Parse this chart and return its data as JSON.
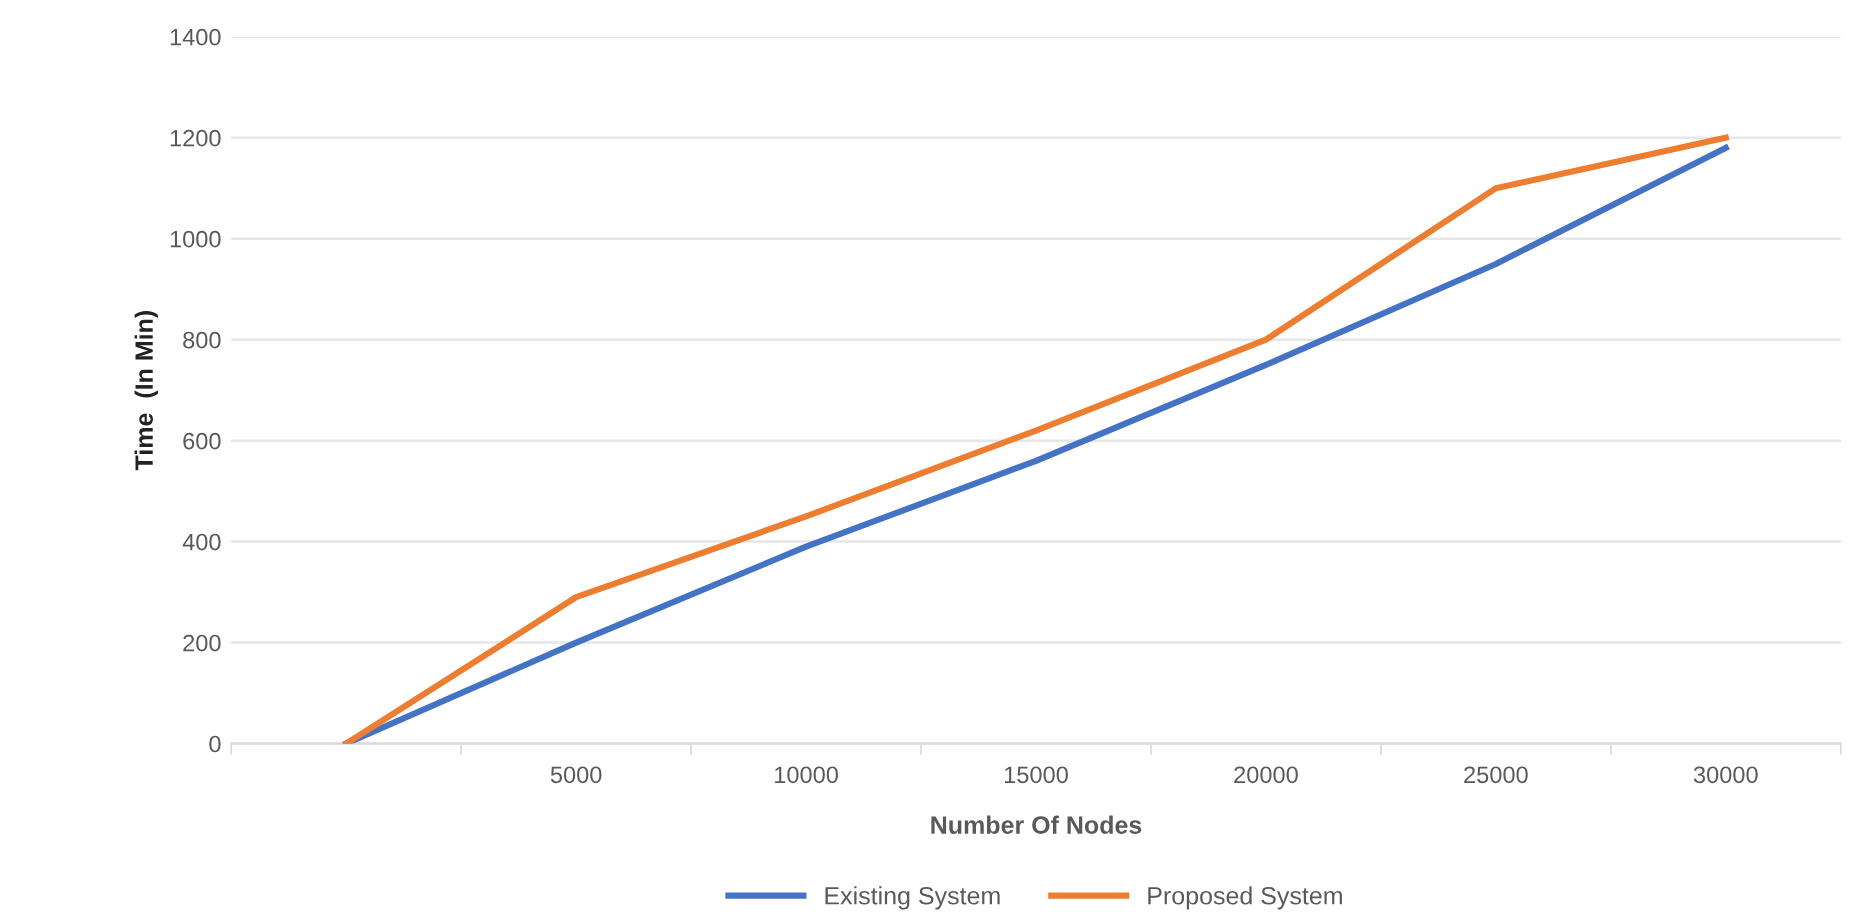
{
  "chart_data": {
    "type": "line",
    "xlabel": "Number Of Nodes",
    "ylabel": "Time  (In Min)",
    "categories": [
      null,
      "5000",
      "10000",
      "15000",
      "20000",
      "25000",
      "30000"
    ],
    "series": [
      {
        "name": "Existing System",
        "color": "#4472c4",
        "values": [
          0,
          200,
          390,
          560,
          750,
          950,
          1180
        ]
      },
      {
        "name": "Proposed System",
        "color": "#ed7d31",
        "values": [
          0,
          290,
          450,
          620,
          800,
          1100,
          1200
        ]
      }
    ],
    "ylim": [
      0,
      1400
    ],
    "yticks": [
      0,
      200,
      400,
      600,
      800,
      1000,
      1200,
      1400
    ],
    "grid": "y",
    "legend": "bottom",
    "marker": "none",
    "line_style": "solid"
  }
}
